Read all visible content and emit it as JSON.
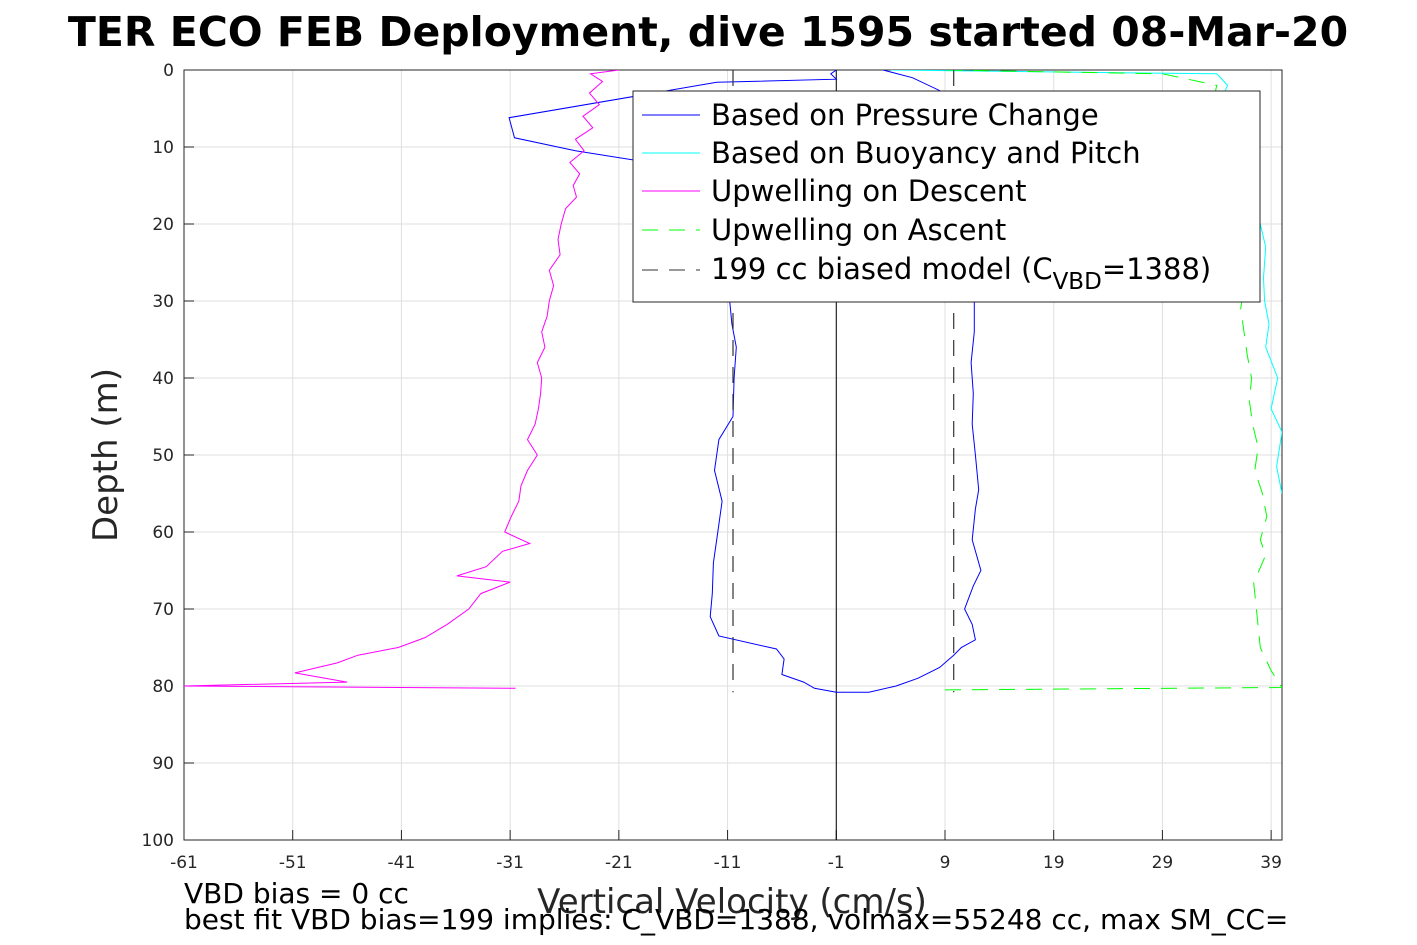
{
  "chart_data": {
    "type": "line",
    "title": "TER ECO FEB Deployment, dive 1595 started 08-Mar-20",
    "xlabel": "Vertical Velocity (cm/s)",
    "ylabel": "Depth (m)",
    "xlim": [
      -61,
      40
    ],
    "ylim": [
      100,
      0
    ],
    "y_reversed": true,
    "grid": true,
    "legend_placement": "top-right",
    "x_tick_labels": [
      "-61",
      "-51",
      "-41",
      "-31",
      "-21",
      "-11",
      "-1",
      "9",
      "19",
      "29",
      "39"
    ],
    "x_ticks": [
      -61,
      -51,
      -41,
      -31,
      -21,
      -11,
      -1,
      9,
      19,
      29,
      39
    ],
    "y_tick_labels": [
      "0",
      "10",
      "20",
      "30",
      "40",
      "50",
      "60",
      "70",
      "80",
      "90",
      "100"
    ],
    "y_ticks": [
      0,
      10,
      20,
      30,
      40,
      50,
      60,
      70,
      80,
      90,
      100
    ],
    "series": [
      {
        "name": "Based on Pressure Change",
        "color": "#0000ff",
        "style": "solid",
        "points": [
          [
            -1,
            0
          ],
          [
            -1.5,
            0.5
          ],
          [
            -1,
            1.2
          ],
          [
            -12,
            1.6
          ],
          [
            -31.1,
            6.2
          ],
          [
            -30.6,
            8.8
          ],
          [
            -25,
            10.5
          ],
          [
            -16,
            12.5
          ],
          [
            -12,
            14
          ],
          [
            -10.5,
            18
          ],
          [
            -10,
            22
          ],
          [
            -10.3,
            26
          ],
          [
            -10.8,
            30
          ],
          [
            -10.6,
            33
          ],
          [
            -10.2,
            36
          ],
          [
            -10.4,
            40
          ],
          [
            -10.5,
            45
          ],
          [
            -11.8,
            48
          ],
          [
            -12.2,
            52
          ],
          [
            -11.5,
            56
          ],
          [
            -11.9,
            60
          ],
          [
            -12.3,
            64
          ],
          [
            -12.4,
            68
          ],
          [
            -12.6,
            71
          ],
          [
            -11.8,
            73.5
          ],
          [
            -6.5,
            75.2
          ],
          [
            -5.8,
            76.5
          ],
          [
            -6,
            78.5
          ],
          [
            -4,
            79.5
          ],
          [
            -3,
            80.3
          ],
          [
            -1,
            80.8
          ],
          [
            2,
            80.8
          ],
          [
            4.5,
            80
          ],
          [
            6.5,
            79
          ],
          [
            8.5,
            77.6
          ],
          [
            9.8,
            76
          ],
          [
            10.5,
            75
          ],
          [
            11.8,
            74
          ],
          [
            11.5,
            72
          ],
          [
            10.8,
            70
          ],
          [
            11.6,
            67
          ],
          [
            12.3,
            65
          ],
          [
            11.5,
            61
          ],
          [
            11.8,
            57
          ],
          [
            12.1,
            54.5
          ],
          [
            11.8,
            50
          ],
          [
            11.5,
            46
          ],
          [
            11.6,
            42
          ],
          [
            11.4,
            38
          ],
          [
            11.7,
            34
          ],
          [
            11.7,
            30
          ],
          [
            11.5,
            26
          ],
          [
            11.6,
            22
          ],
          [
            11.5,
            18
          ],
          [
            11.4,
            14
          ],
          [
            11.3,
            10
          ],
          [
            11,
            6
          ],
          [
            9,
            3
          ],
          [
            6,
            1
          ],
          [
            3.3,
            0
          ]
        ]
      },
      {
        "name": "Based on Buoyancy and Pitch",
        "color": "#00ffff",
        "style": "solid",
        "points": [
          [
            4,
            0
          ],
          [
            34,
            0.5
          ],
          [
            35,
            2
          ],
          [
            34,
            5
          ],
          [
            36,
            10
          ],
          [
            37,
            15
          ],
          [
            38,
            20
          ],
          [
            38.5,
            23
          ],
          [
            38.3,
            27
          ],
          [
            38.4,
            30
          ],
          [
            38.8,
            33
          ],
          [
            38.5,
            36
          ],
          [
            39.6,
            40
          ],
          [
            39,
            44
          ],
          [
            40,
            47
          ],
          [
            39.5,
            51.5
          ],
          [
            40,
            55
          ]
        ]
      },
      {
        "name": "Upwelling on Descent",
        "color": "#ff00ff",
        "style": "solid",
        "points": [
          [
            -21,
            0
          ],
          [
            -23.6,
            0.5
          ],
          [
            -22.5,
            1.5
          ],
          [
            -23.7,
            3
          ],
          [
            -22.8,
            4.5
          ],
          [
            -24.3,
            6
          ],
          [
            -23.4,
            7.5
          ],
          [
            -25,
            9
          ],
          [
            -24.2,
            10.5
          ],
          [
            -25.5,
            12
          ],
          [
            -24.6,
            13.5
          ],
          [
            -25.2,
            15
          ],
          [
            -24.9,
            16.5
          ],
          [
            -25.9,
            18
          ],
          [
            -26.3,
            20
          ],
          [
            -26.6,
            22
          ],
          [
            -26.4,
            24
          ],
          [
            -27.4,
            26
          ],
          [
            -27,
            28
          ],
          [
            -27.4,
            30
          ],
          [
            -27.6,
            32
          ],
          [
            -28.1,
            34
          ],
          [
            -27.8,
            36
          ],
          [
            -28.5,
            38
          ],
          [
            -28.1,
            40
          ],
          [
            -28.2,
            42
          ],
          [
            -28.4,
            44
          ],
          [
            -28.7,
            46
          ],
          [
            -29.4,
            48
          ],
          [
            -28.5,
            50
          ],
          [
            -29.4,
            52
          ],
          [
            -30,
            54
          ],
          [
            -30.2,
            56
          ],
          [
            -30.9,
            58
          ],
          [
            -31.5,
            60
          ],
          [
            -29.2,
            61.5
          ],
          [
            -31.7,
            62.5
          ],
          [
            -33.2,
            64.5
          ],
          [
            -35.9,
            65.7
          ],
          [
            -31,
            66.5
          ],
          [
            -33.7,
            68
          ],
          [
            -34.8,
            70
          ],
          [
            -36.8,
            72
          ],
          [
            -38.8,
            73.7
          ],
          [
            -41.3,
            75
          ],
          [
            -45,
            76
          ],
          [
            -46.9,
            77
          ],
          [
            -50.8,
            78.3
          ],
          [
            -46,
            79.5
          ],
          [
            -61,
            80
          ],
          [
            -30.5,
            80.3
          ]
        ]
      },
      {
        "name": "Upwelling on Ascent",
        "color": "#00ff00",
        "style": "dashed",
        "points": [
          [
            9,
            80.5
          ],
          [
            40,
            80.2
          ],
          [
            39,
            78
          ],
          [
            38,
            75
          ],
          [
            37.4,
            66.6
          ],
          [
            38.5,
            63
          ],
          [
            38,
            61
          ],
          [
            38.6,
            58
          ],
          [
            38.2,
            55
          ],
          [
            37.5,
            52
          ],
          [
            37.8,
            49
          ],
          [
            37.3,
            46
          ],
          [
            37,
            43
          ],
          [
            37.2,
            40
          ],
          [
            36.8,
            37
          ],
          [
            36.5,
            34
          ],
          [
            36.2,
            31
          ],
          [
            36.5,
            28
          ],
          [
            36.8,
            24
          ],
          [
            35.5,
            20
          ],
          [
            35,
            15
          ],
          [
            34,
            10
          ],
          [
            33.5,
            5
          ],
          [
            34,
            2
          ],
          [
            29,
            0.5
          ],
          [
            9,
            0
          ]
        ]
      },
      {
        "name": "199 cc biased model (C_VBD=1388)",
        "color": "#333333",
        "style": "dashed",
        "points_left": [
          [
            -10.5,
            0
          ],
          [
            -10.5,
            80.8
          ]
        ],
        "points_right": [
          [
            9.8,
            0
          ],
          [
            9.8,
            80.8
          ]
        ]
      }
    ],
    "reference_line_x": -1
  },
  "legend": {
    "entries": [
      {
        "label": "Based on Pressure Change",
        "color": "#0000ff",
        "style": "solid"
      },
      {
        "label": "Based on Buoyancy and Pitch",
        "color": "#00ffff",
        "style": "solid"
      },
      {
        "label": "Upwelling on Descent",
        "color": "#ff00ff",
        "style": "solid"
      },
      {
        "label": "Upwelling on Ascent",
        "color": "#00ff00",
        "style": "dashed"
      },
      {
        "label_main": "199 cc biased model (C",
        "label_sub": "VBD",
        "label_end": "=1388)",
        "color": "#333333",
        "style": "dashed"
      }
    ]
  },
  "footer": {
    "line1": "VBD bias = 0 cc",
    "line2": "best fit VBD bias=199 implies: C_VBD=1388, volmax=55248 cc, max SM_CC="
  }
}
